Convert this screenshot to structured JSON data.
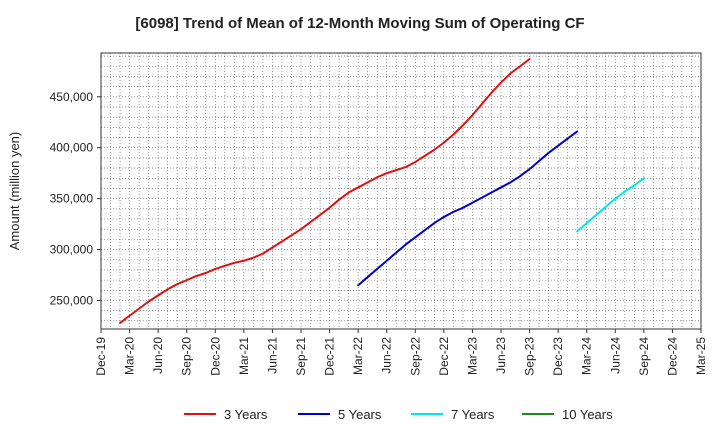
{
  "chart_data": {
    "type": "line",
    "title": "[6098]  Trend of Mean of 12-Month Moving Sum of Operating CF",
    "xlabel": "",
    "ylabel": "Amount (million yen)",
    "ylim": [
      222000,
      493000
    ],
    "yticks": [
      250000,
      300000,
      350000,
      400000,
      450000
    ],
    "ytick_labels": [
      "250,000",
      "300,000",
      "350,000",
      "400,000",
      "450,000"
    ],
    "x_start": "Dec-19",
    "x_end": "Mar-25",
    "xtick_labels": [
      "Dec-19",
      "Mar-20",
      "Jun-20",
      "Sep-20",
      "Dec-20",
      "Mar-21",
      "Jun-21",
      "Sep-21",
      "Dec-21",
      "Mar-22",
      "Jun-22",
      "Sep-22",
      "Dec-22",
      "Mar-23",
      "Jun-23",
      "Sep-23",
      "Dec-23",
      "Mar-24",
      "Jun-24",
      "Sep-24",
      "Dec-24",
      "Mar-25"
    ],
    "grid": true,
    "legend_position": "bottom",
    "series": [
      {
        "name": "3 Years",
        "color": "#dd1111",
        "start_month": 2,
        "values": [
          228000,
          235000,
          242000,
          249000,
          255000,
          261000,
          266000,
          270000,
          274000,
          277000,
          281000,
          284000,
          287000,
          289000,
          292000,
          296000,
          302000,
          308000,
          314000,
          320000,
          327000,
          334000,
          341000,
          349000,
          356000,
          361000,
          366000,
          371000,
          375000,
          378000,
          381000,
          386000,
          392000,
          398000,
          405000,
          413000,
          422000,
          432000,
          443000,
          454000,
          464000,
          473000,
          480000,
          487000
        ]
      },
      {
        "name": "5 Years",
        "color": "#0000cc",
        "start_month": 27,
        "values": [
          265000,
          273000,
          281000,
          289000,
          297000,
          305000,
          312000,
          319000,
          326000,
          332000,
          337000,
          341000,
          346000,
          351000,
          356000,
          361000,
          366000,
          372000,
          379000,
          387000,
          395000,
          402000,
          409000,
          416000
        ]
      },
      {
        "name": "7 Years",
        "color": "#00e5e5",
        "start_month": 50,
        "values": [
          318000,
          326000,
          334000,
          342000,
          350000,
          357000,
          363000,
          370000
        ]
      },
      {
        "name": "10 Years",
        "color": "#228822",
        "start_month": 0,
        "values": []
      }
    ]
  }
}
